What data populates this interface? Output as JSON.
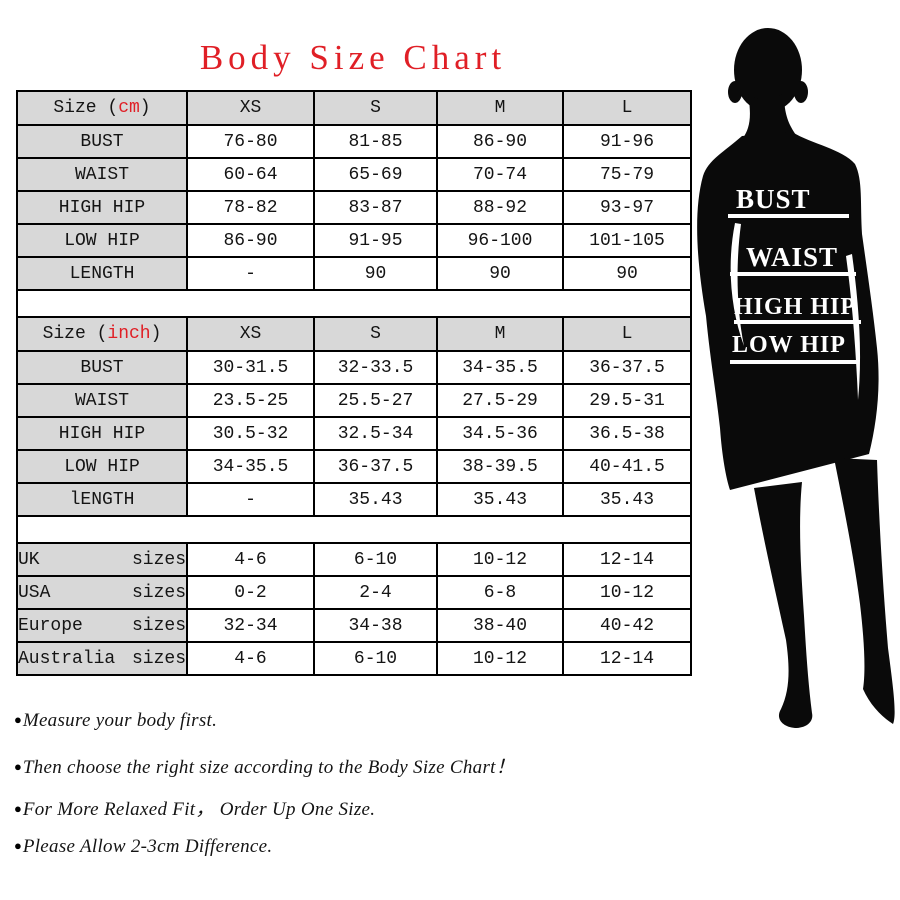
{
  "title": "Body Size Chart",
  "colors": {
    "accent_red": "#e01f26",
    "header_gray": "#d8d8d8",
    "silhouette": "#0a0a0a"
  },
  "size_table": {
    "column_headers": [
      "XS",
      "S",
      "M",
      "L"
    ],
    "groups": [
      {
        "header_prefix": "Size (",
        "header_unit": "cm",
        "header_suffix": ")",
        "rows": [
          {
            "label": "BUST",
            "values": [
              "76-80",
              "81-85",
              "86-90",
              "91-96"
            ]
          },
          {
            "label": "WAIST",
            "values": [
              "60-64",
              "65-69",
              "70-74",
              "75-79"
            ]
          },
          {
            "label": "HIGH HIP",
            "values": [
              "78-82",
              "83-87",
              "88-92",
              "93-97"
            ]
          },
          {
            "label": "LOW HIP",
            "values": [
              "86-90",
              "91-95",
              "96-100",
              "101-105"
            ]
          },
          {
            "label": "LENGTH",
            "values": [
              "-",
              "90",
              "90",
              "90"
            ]
          }
        ]
      },
      {
        "header_prefix": "Size (",
        "header_unit": "inch",
        "header_suffix": ")",
        "rows": [
          {
            "label": "BUST",
            "values": [
              "30-31.5",
              "32-33.5",
              "34-35.5",
              "36-37.5"
            ]
          },
          {
            "label": "WAIST",
            "values": [
              "23.5-25",
              "25.5-27",
              "27.5-29",
              "29.5-31"
            ]
          },
          {
            "label": "HIGH HIP",
            "values": [
              "30.5-32",
              "32.5-34",
              "34.5-36",
              "36.5-38"
            ]
          },
          {
            "label": "LOW HIP",
            "values": [
              "34-35.5",
              "36-37.5",
              "38-39.5",
              "40-41.5"
            ]
          },
          {
            "label": "lENGTH",
            "values": [
              "-",
              "35.43",
              "35.43",
              "35.43"
            ]
          }
        ]
      },
      {
        "rows": [
          {
            "label": "UK",
            "label2": "sizes",
            "values": [
              "4-6",
              "6-10",
              "10-12",
              "12-14"
            ]
          },
          {
            "label": "USA",
            "label2": "sizes",
            "values": [
              "0-2",
              "2-4",
              "6-8",
              "10-12"
            ]
          },
          {
            "label": "Europe",
            "label2": "sizes",
            "values": [
              "32-34",
              "34-38",
              "38-40",
              "40-42"
            ]
          },
          {
            "label": "Australia",
            "label2": "sizes",
            "values": [
              "4-6",
              "6-10",
              "10-12",
              "12-14"
            ]
          }
        ]
      }
    ]
  },
  "notes": [
    {
      "bullet": "●",
      "text": "Measure your body first."
    },
    {
      "bullet": "●",
      "text": "Then choose the right size according to the Body Size Chart！"
    },
    {
      "bullet": "●",
      "text": "For More Relaxed Fit， Order Up One Size."
    },
    {
      "bullet": "●",
      "text": "Please Allow 2-3cm Difference."
    }
  ],
  "figure": {
    "labels": [
      "BUST",
      "WAIST",
      "HIGH HIP",
      "LOW HIP"
    ]
  }
}
